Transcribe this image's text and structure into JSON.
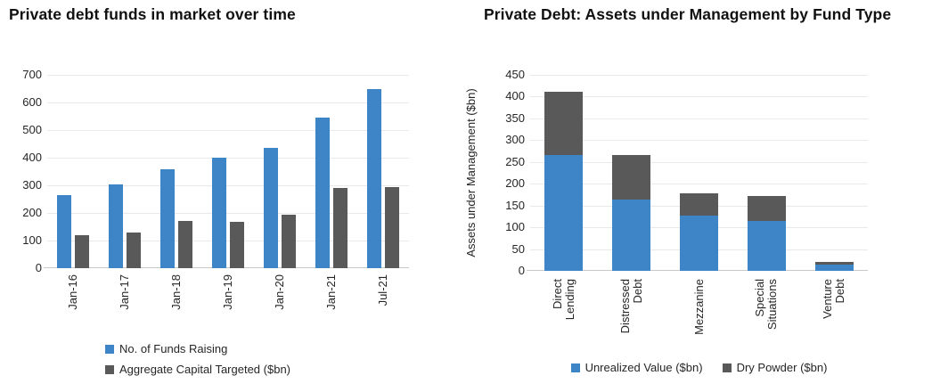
{
  "colors": {
    "accent_blue": "#3d85c6",
    "accent_gray": "#595959",
    "gridline": "#e9e9e9",
    "axis_line": "#c9c9c9",
    "title_text": "#111111",
    "axis_text": "#262626",
    "background": "#ffffff"
  },
  "chart_data": [
    {
      "type": "bar",
      "bar_mode": "grouped",
      "title": "Private debt funds in market over time",
      "xlabel": "",
      "ylabel": "",
      "categories": [
        "Jan-16",
        "Jan-17",
        "Jan-18",
        "Jan-19",
        "Jan-20",
        "Jan-21",
        "Jul-21"
      ],
      "series": [
        {
          "name": "No. of Funds Raising",
          "color": "#3d85c6",
          "values": [
            265,
            305,
            357,
            400,
            437,
            545,
            650
          ]
        },
        {
          "name": "Aggregate Capital Targeted ($bn)",
          "color": "#595959",
          "values": [
            120,
            130,
            172,
            168,
            193,
            290,
            295
          ]
        }
      ],
      "ylim": [
        0,
        700
      ],
      "ystep": 100,
      "grid": true,
      "legend_position": "bottom-left-stacked"
    },
    {
      "type": "bar",
      "bar_mode": "stacked",
      "title": "Private Debt: Assets under Management by Fund Type",
      "xlabel": "",
      "ylabel": "Assets under Management ($bn)",
      "categories": [
        "Direct Lending",
        "Distressed Debt",
        "Mezzanine",
        "Special Situations",
        "Venture Debt"
      ],
      "categories_lines": [
        [
          "Direct",
          "Lending"
        ],
        [
          "Distressed",
          "Debt"
        ],
        [
          "Mezzanine"
        ],
        [
          "Special",
          "Situations"
        ],
        [
          "Venture",
          "Debt"
        ]
      ],
      "series": [
        {
          "name": "Unrealized Value ($bn)",
          "color": "#3d85c6",
          "values": [
            265,
            163,
            126,
            114,
            14
          ]
        },
        {
          "name": "Dry Powder ($bn)",
          "color": "#595959",
          "values": [
            147,
            102,
            52,
            58,
            7
          ]
        }
      ],
      "ylim": [
        0,
        450
      ],
      "ystep": 50,
      "grid": true,
      "legend_position": "bottom-center-horizontal"
    }
  ]
}
